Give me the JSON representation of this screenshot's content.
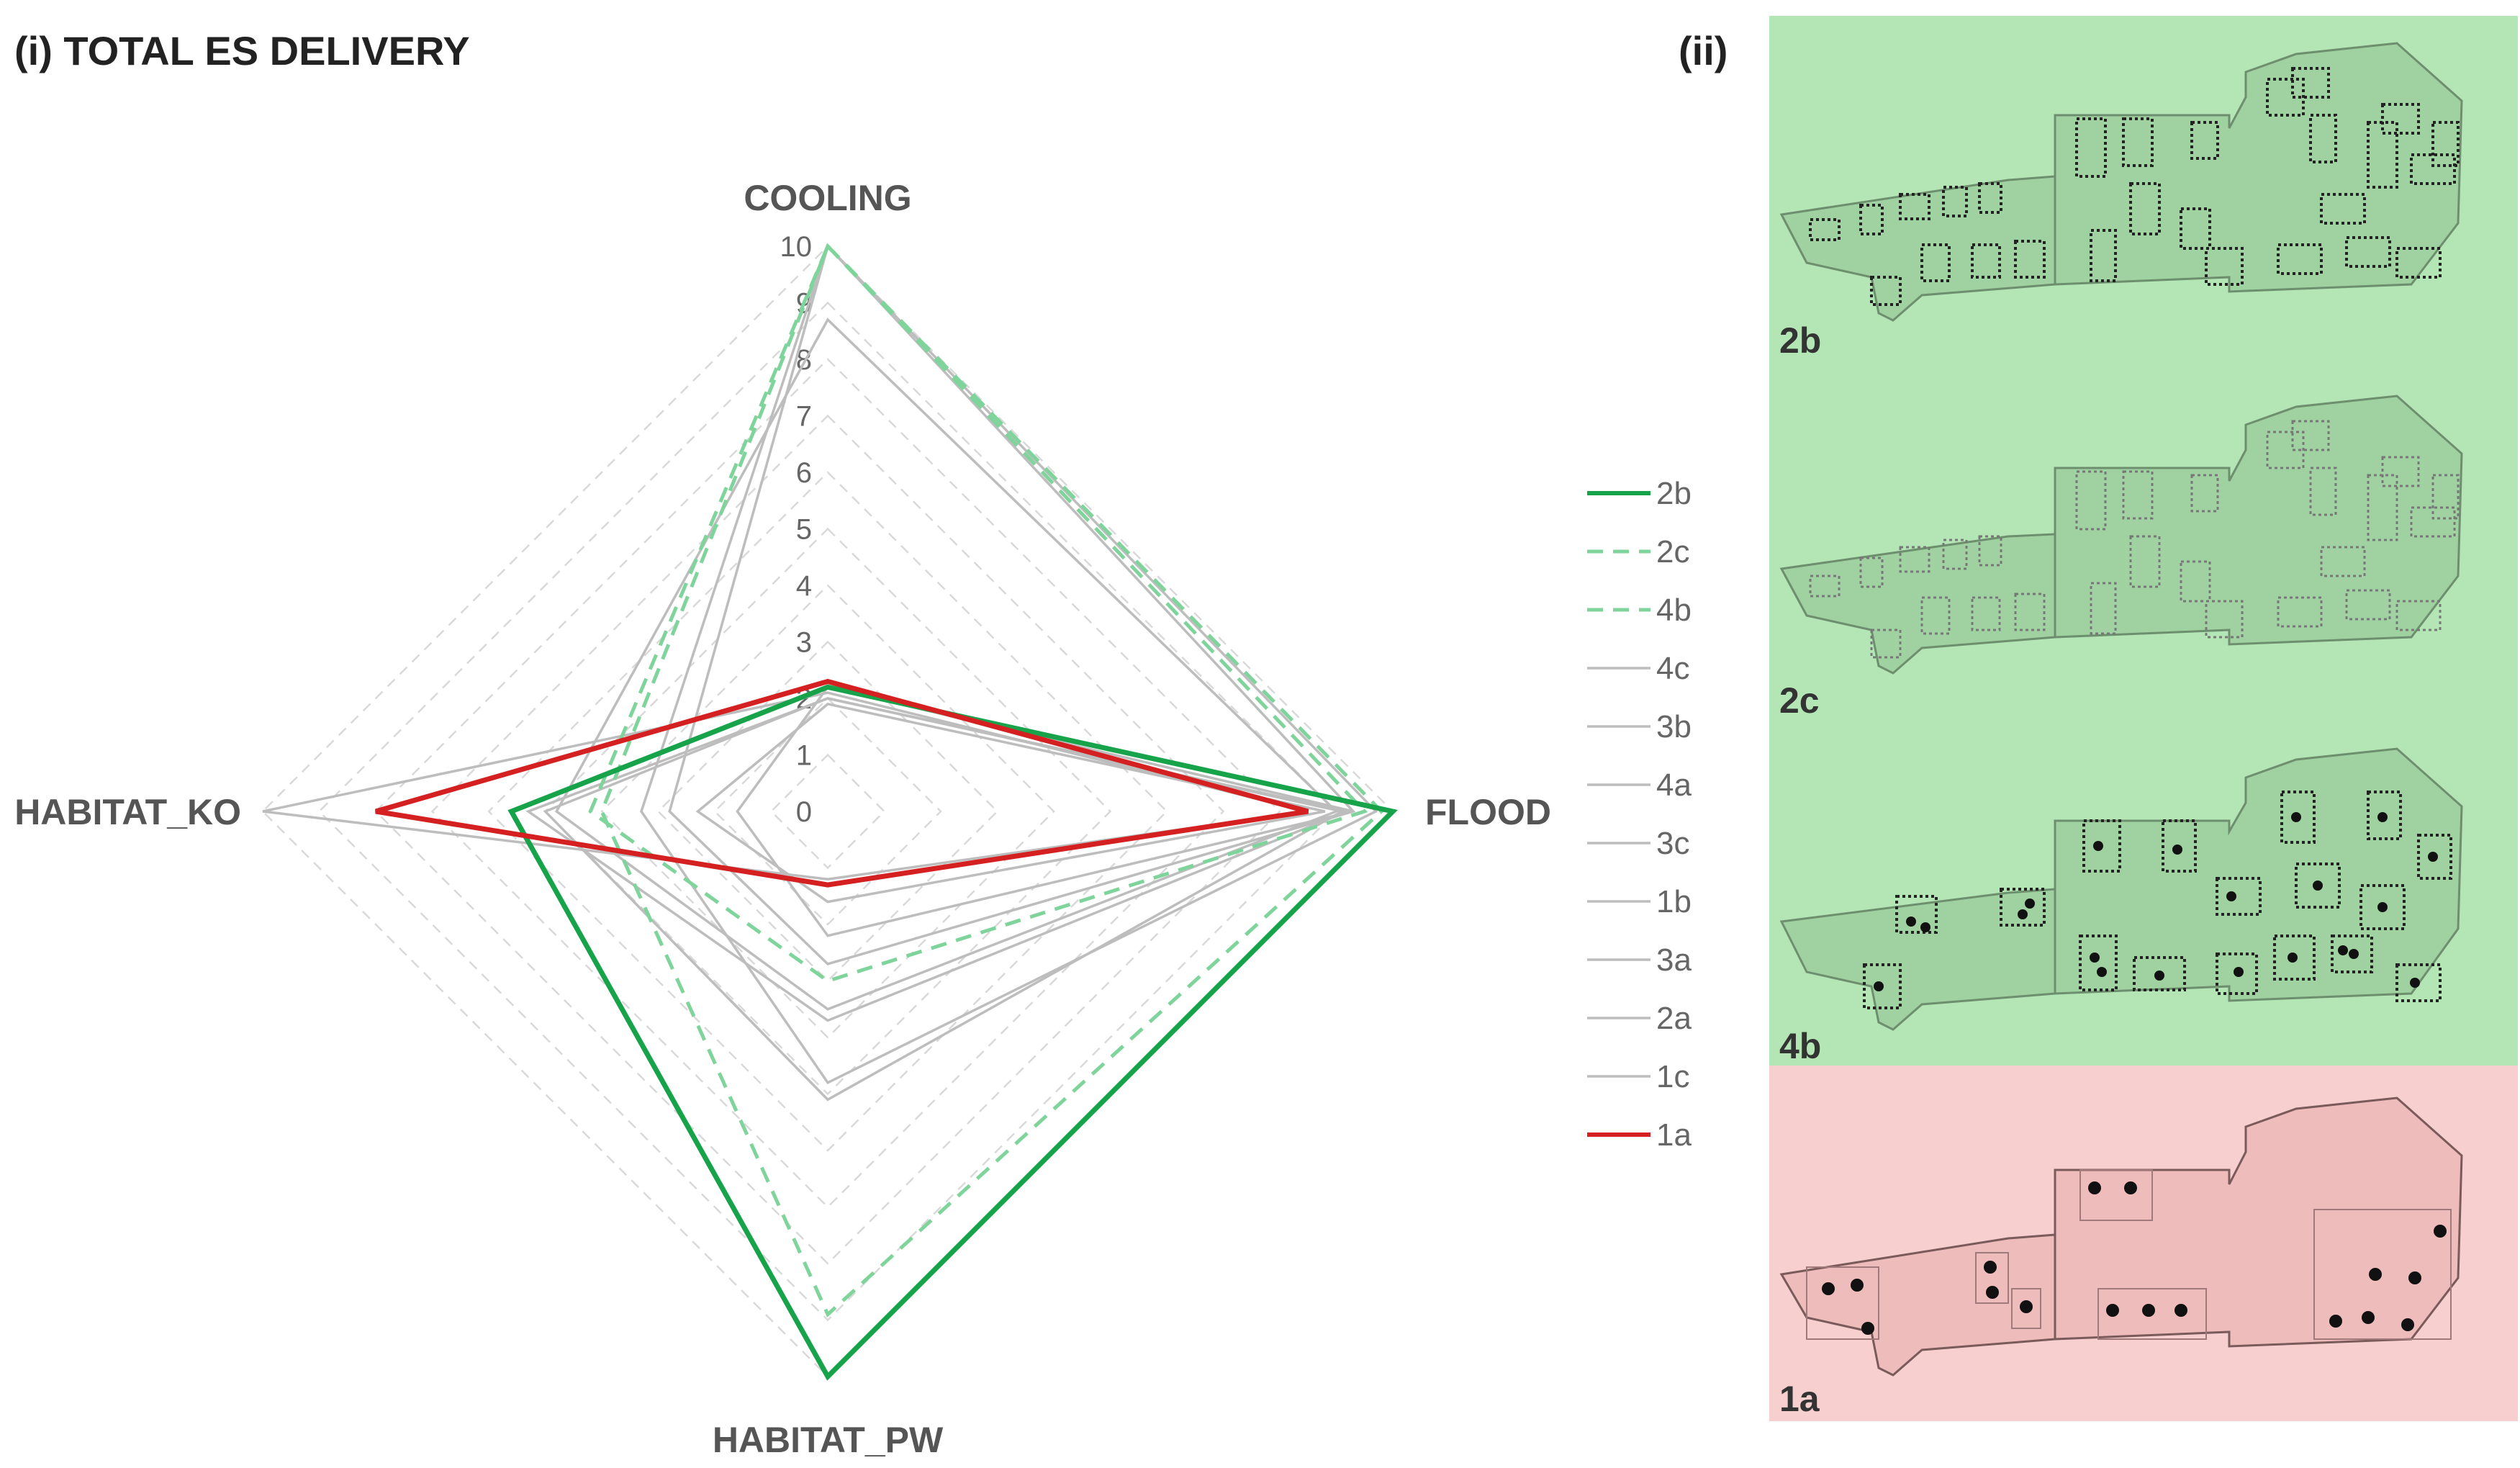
{
  "panel_i_title": "(i) TOTAL ES DELIVERY",
  "panel_ii_title": "(ii)",
  "colors": {
    "green": "#16a34a",
    "light_green": "#7fd49b",
    "gray": "#bdbdbd",
    "red": "#d42020",
    "tile_green_bg": "#b3e5b5",
    "tile_green_fill": "#9fd2a0",
    "tile_red_bg": "#f8cfcf",
    "tile_red_fill": "#efbcbc"
  },
  "chart_data": {
    "type": "radar",
    "title": "(i) TOTAL ES DELIVERY",
    "axes": [
      "COOLING",
      "FLOOD",
      "HABITAT_PW",
      "HABITAT_KO"
    ],
    "rlim": [
      0,
      10
    ],
    "ticks": [
      "0",
      "1",
      "2",
      "3",
      "4",
      "5",
      "6",
      "7",
      "8",
      "9",
      "10"
    ],
    "series": [
      {
        "name": "2b",
        "style": "solid-green",
        "values": [
          2.2,
          10,
          10,
          5.6
        ]
      },
      {
        "name": "2c",
        "style": "dashed-light-green",
        "values": [
          10,
          9.8,
          8.9,
          4
        ]
      },
      {
        "name": "4b",
        "style": "dashed-light-green",
        "values": [
          10,
          9.5,
          3,
          4.2
        ]
      },
      {
        "name": "4c",
        "style": "gray",
        "values": [
          10,
          9.7,
          4.8,
          3.3
        ]
      },
      {
        "name": "3b",
        "style": "gray",
        "values": [
          10,
          9.3,
          2.7,
          2.8
        ]
      },
      {
        "name": "4a",
        "style": "gray",
        "values": [
          8.7,
          9,
          3.5,
          4.8
        ]
      },
      {
        "name": "3c",
        "style": "gray",
        "values": [
          2,
          9.2,
          3.7,
          5.3
        ]
      },
      {
        "name": "1b",
        "style": "gray",
        "values": [
          2,
          9.1,
          5.1,
          5
        ]
      },
      {
        "name": "3a",
        "style": "gray",
        "values": [
          2.2,
          9.3,
          2.2,
          1.6
        ]
      },
      {
        "name": "2a",
        "style": "gray",
        "values": [
          1.9,
          8.8,
          1.6,
          2.3
        ]
      },
      {
        "name": "1c",
        "style": "gray",
        "values": [
          2.1,
          8.5,
          1.2,
          10
        ]
      },
      {
        "name": "1a",
        "style": "solid-red",
        "values": [
          2.3,
          8.5,
          1.3,
          8
        ]
      }
    ],
    "legend_position": "right"
  },
  "tiles": [
    {
      "label": "2b",
      "theme": "green"
    },
    {
      "label": "2c",
      "theme": "green"
    },
    {
      "label": "4b",
      "theme": "green"
    },
    {
      "label": "1a",
      "theme": "red"
    }
  ]
}
